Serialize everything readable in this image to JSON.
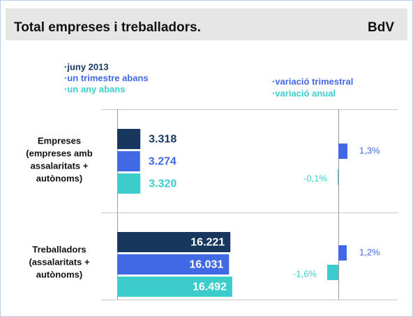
{
  "chart_data": [
    {
      "type": "hbar",
      "title": "Total empreses i treballadors.",
      "subtitle": "BdV",
      "categories": [
        [
          "Empreses",
          "(empreses amb",
          "assalaritats +",
          "autònoms)"
        ],
        [
          "Treballadors",
          "(assalaritats +",
          "autònoms)"
        ]
      ],
      "series": [
        {
          "name": "·juny 2013",
          "color": "#17375e",
          "values": [
            3318,
            16221
          ],
          "value_labels": [
            "3.318",
            "16.221"
          ]
        },
        {
          "name": "·un trimestre abans",
          "color": "#4169e6",
          "values": [
            3274,
            16031
          ],
          "value_labels": [
            "3.274",
            "16.031"
          ]
        },
        {
          "name": "·un any abans",
          "color": "#3ccccc",
          "values": [
            3320,
            16492
          ],
          "value_labels": [
            "3.320",
            "16.492"
          ]
        }
      ],
      "xlim": [
        0,
        20000
      ]
    },
    {
      "type": "hbar",
      "series": [
        {
          "name": "·variació trimestral",
          "color": "#4169e6",
          "values": [
            1.3,
            1.2
          ],
          "value_labels": [
            "1,3%",
            "1,2%"
          ]
        },
        {
          "name": "·variació anual",
          "color": "#3ccccc",
          "values": [
            -0.1,
            -1.6
          ],
          "value_labels": [
            "-0,1%",
            "-1,6%"
          ]
        }
      ],
      "xlim": [
        -5,
        5
      ]
    }
  ]
}
